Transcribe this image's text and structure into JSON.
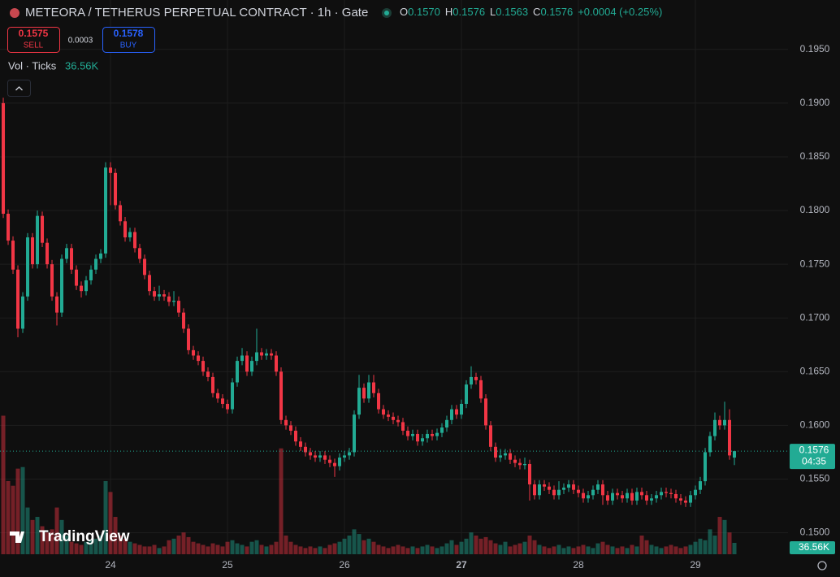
{
  "chart_data": {
    "type": "candlestick",
    "title": "METEORA / TETHERUS PERPETUAL CONTRACT · 1h · Gate",
    "ohlc_legend": [
      {
        "label": "O",
        "value": "0.1570"
      },
      {
        "label": "H",
        "value": "0.1576"
      },
      {
        "label": "L",
        "value": "0.1563"
      },
      {
        "label": "C",
        "value": "0.1576"
      }
    ],
    "change": "+0.0004 (+0.25%)",
    "sell": {
      "price": "0.1575",
      "label": "SELL"
    },
    "spread": "0.0003",
    "buy": {
      "price": "0.1578",
      "label": "BUY"
    },
    "volume_legend": {
      "label": "Vol · Ticks",
      "value": "36.56K"
    },
    "watermark": "TradingView",
    "up_color": "#22ab94",
    "down_color": "#f23645",
    "grid": true,
    "xlim": [
      -0.67,
      161
    ],
    "xticks": [
      {
        "value": 22,
        "label": "24"
      },
      {
        "value": 46,
        "label": "25"
      },
      {
        "value": 70,
        "label": "26"
      },
      {
        "value": 94,
        "label": "27",
        "bold": true
      },
      {
        "value": 118,
        "label": "28"
      },
      {
        "value": 142,
        "label": "29"
      }
    ],
    "ylim": [
      0.148,
      0.1996
    ],
    "yticks": [
      {
        "value": 0.15,
        "label": "0.1500"
      },
      {
        "value": 0.155,
        "label": "0.1550"
      },
      {
        "value": 0.16,
        "label": "0.1600"
      },
      {
        "value": 0.165,
        "label": "0.1650"
      },
      {
        "value": 0.17,
        "label": "0.1700"
      },
      {
        "value": 0.175,
        "label": "0.1750"
      },
      {
        "value": 0.18,
        "label": "0.1800"
      },
      {
        "value": 0.185,
        "label": "0.1850"
      },
      {
        "value": 0.19,
        "label": "0.1900"
      },
      {
        "value": 0.195,
        "label": "0.1950"
      }
    ],
    "last_price": {
      "value": 0.1576,
      "label": "0.1576"
    },
    "countdown": "04:35",
    "volume_lim": [
      0,
      1780000
    ],
    "last_volume": {
      "value": 36560,
      "label": "36.56K"
    },
    "open": [
      0.19,
      0.1797,
      0.1772,
      0.1745,
      0.169,
      0.172,
      0.1775,
      0.175,
      0.1795,
      0.177,
      0.175,
      0.172,
      0.1705,
      0.1755,
      0.1765,
      0.1745,
      0.173,
      0.1725,
      0.1735,
      0.1745,
      0.1755,
      0.176,
      0.184,
      0.1835,
      0.1805,
      0.179,
      0.1775,
      0.178,
      0.1765,
      0.1755,
      0.174,
      0.1725,
      0.172,
      0.1722,
      0.172,
      0.1715,
      0.1716,
      0.1705,
      0.169,
      0.167,
      0.1665,
      0.166,
      0.165,
      0.1645,
      0.163,
      0.1625,
      0.162,
      0.1615,
      0.164,
      0.166,
      0.1665,
      0.165,
      0.166,
      0.1668,
      0.1665,
      0.1667,
      0.1665,
      0.165,
      0.1605,
      0.16,
      0.1595,
      0.1585,
      0.158,
      0.1575,
      0.1572,
      0.157,
      0.1572,
      0.1568,
      0.1565,
      0.1562,
      0.157,
      0.1572,
      0.1575,
      0.161,
      0.1635,
      0.1625,
      0.164,
      0.163,
      0.1615,
      0.161,
      0.1608,
      0.1605,
      0.1603,
      0.1595,
      0.159,
      0.1592,
      0.1585,
      0.1588,
      0.1592,
      0.159,
      0.1593,
      0.1598,
      0.1605,
      0.1615,
      0.161,
      0.162,
      0.1638,
      0.1645,
      0.1642,
      0.1625,
      0.16,
      0.158,
      0.157,
      0.1572,
      0.1574,
      0.1568,
      0.1565,
      0.1563,
      0.1564,
      0.1545,
      0.1535,
      0.1545,
      0.1543,
      0.154,
      0.1535,
      0.154,
      0.1542,
      0.1545,
      0.154,
      0.1537,
      0.1532,
      0.1535,
      0.154,
      0.1545,
      0.1535,
      0.153,
      0.1537,
      0.1535,
      0.1532,
      0.1537,
      0.153,
      0.1538,
      0.1535,
      0.153,
      0.1532,
      0.1535,
      0.1538,
      0.1537,
      0.1536,
      0.1532,
      0.153,
      0.1528,
      0.1535,
      0.154,
      0.1548,
      0.1575,
      0.159,
      0.1605,
      0.16,
      0.1605,
      0.157
    ],
    "high": [
      0.1905,
      0.1801,
      0.1776,
      0.1749,
      0.1724,
      0.1779,
      0.1779,
      0.18,
      0.1799,
      0.1774,
      0.1754,
      0.1724,
      0.1759,
      0.1769,
      0.1769,
      0.1749,
      0.1734,
      0.1739,
      0.1749,
      0.1759,
      0.1764,
      0.1845,
      0.1845,
      0.1839,
      0.1809,
      0.1794,
      0.1784,
      0.1784,
      0.1769,
      0.1759,
      0.1744,
      0.1729,
      0.173,
      0.1726,
      0.1724,
      0.1725,
      0.172,
      0.1709,
      0.1694,
      0.1674,
      0.1669,
      0.1664,
      0.1654,
      0.1649,
      0.1634,
      0.1629,
      0.1624,
      0.1644,
      0.1664,
      0.1672,
      0.1669,
      0.1664,
      0.169,
      0.1672,
      0.1671,
      0.1671,
      0.1669,
      0.1654,
      0.1609,
      0.1604,
      0.1599,
      0.1589,
      0.1584,
      0.1579,
      0.1576,
      0.1576,
      0.1576,
      0.1572,
      0.1569,
      0.1574,
      0.1576,
      0.1579,
      0.1614,
      0.1647,
      0.1639,
      0.1647,
      0.1647,
      0.1634,
      0.1619,
      0.1614,
      0.1612,
      0.1609,
      0.1607,
      0.1599,
      0.1596,
      0.1596,
      0.1592,
      0.1596,
      0.1596,
      0.1597,
      0.1602,
      0.1609,
      0.1619,
      0.1619,
      0.1624,
      0.1642,
      0.1655,
      0.1649,
      0.1646,
      0.1629,
      0.1604,
      0.1584,
      0.1578,
      0.1578,
      0.1578,
      0.1572,
      0.1569,
      0.157,
      0.1568,
      0.1549,
      0.1549,
      0.1549,
      0.1547,
      0.1544,
      0.1548,
      0.1546,
      0.1549,
      0.1549,
      0.1544,
      0.1541,
      0.1539,
      0.1544,
      0.1549,
      0.1549,
      0.1539,
      0.1541,
      0.1541,
      0.1539,
      0.1541,
      0.1541,
      0.1542,
      0.1542,
      0.1539,
      0.1536,
      0.1539,
      0.1542,
      0.1542,
      0.1541,
      0.154,
      0.1536,
      0.1534,
      0.1539,
      0.1544,
      0.1552,
      0.1579,
      0.1594,
      0.1612,
      0.1609,
      0.1622,
      0.1615,
      0.1576
    ],
    "low": [
      0.1793,
      0.1768,
      0.1741,
      0.1682,
      0.1686,
      0.1716,
      0.1746,
      0.1746,
      0.1766,
      0.1746,
      0.1716,
      0.1693,
      0.1701,
      0.1751,
      0.1741,
      0.1726,
      0.1719,
      0.1721,
      0.1731,
      0.1741,
      0.1751,
      0.1756,
      0.1805,
      0.1801,
      0.1786,
      0.1771,
      0.1771,
      0.1761,
      0.1751,
      0.1736,
      0.1721,
      0.1716,
      0.1716,
      0.1716,
      0.1711,
      0.1711,
      0.1701,
      0.1686,
      0.1666,
      0.1661,
      0.1656,
      0.1646,
      0.1641,
      0.1626,
      0.1621,
      0.1616,
      0.1611,
      0.1611,
      0.1636,
      0.1656,
      0.1646,
      0.1646,
      0.1656,
      0.1661,
      0.1661,
      0.1661,
      0.1646,
      0.1601,
      0.1596,
      0.1591,
      0.1581,
      0.1576,
      0.1571,
      0.1568,
      0.1566,
      0.1566,
      0.1564,
      0.1561,
      0.1552,
      0.1558,
      0.1566,
      0.1568,
      0.1571,
      0.1606,
      0.1621,
      0.1621,
      0.1626,
      0.1611,
      0.1606,
      0.1604,
      0.1601,
      0.1599,
      0.1591,
      0.1586,
      0.1586,
      0.1581,
      0.1581,
      0.1584,
      0.1586,
      0.1586,
      0.1589,
      0.1594,
      0.1601,
      0.1606,
      0.1606,
      0.1616,
      0.1634,
      0.1638,
      0.1621,
      0.1596,
      0.1576,
      0.1566,
      0.1566,
      0.1568,
      0.1564,
      0.1561,
      0.1559,
      0.1559,
      0.153,
      0.1531,
      0.1531,
      0.1539,
      0.1536,
      0.1531,
      0.1531,
      0.1536,
      0.1538,
      0.1536,
      0.1533,
      0.1528,
      0.1528,
      0.1531,
      0.1536,
      0.1526,
      0.1526,
      0.1526,
      0.1531,
      0.1528,
      0.1528,
      0.1526,
      0.1526,
      0.1531,
      0.1526,
      0.1526,
      0.1528,
      0.1531,
      0.1533,
      0.1532,
      0.1528,
      0.1526,
      0.1524,
      0.1524,
      0.1531,
      0.1536,
      0.1544,
      0.1571,
      0.1586,
      0.1596,
      0.1596,
      0.1568,
      0.1563
    ],
    "close": [
      0.1797,
      0.1772,
      0.1745,
      0.169,
      0.172,
      0.1775,
      0.175,
      0.1795,
      0.177,
      0.175,
      0.172,
      0.1705,
      0.1755,
      0.1765,
      0.1745,
      0.173,
      0.1725,
      0.1735,
      0.1745,
      0.1755,
      0.176,
      0.184,
      0.1835,
      0.1805,
      0.179,
      0.1775,
      0.178,
      0.1765,
      0.1755,
      0.174,
      0.1725,
      0.172,
      0.1722,
      0.172,
      0.1715,
      0.1716,
      0.1705,
      0.169,
      0.167,
      0.1665,
      0.166,
      0.165,
      0.1645,
      0.163,
      0.1625,
      0.162,
      0.1615,
      0.164,
      0.166,
      0.1665,
      0.165,
      0.166,
      0.1668,
      0.1665,
      0.1667,
      0.1665,
      0.165,
      0.1605,
      0.16,
      0.1595,
      0.1585,
      0.158,
      0.1575,
      0.1572,
      0.157,
      0.1572,
      0.1568,
      0.1565,
      0.1562,
      0.157,
      0.1572,
      0.1575,
      0.161,
      0.1635,
      0.1625,
      0.164,
      0.163,
      0.1615,
      0.161,
      0.1608,
      0.1605,
      0.1603,
      0.1595,
      0.159,
      0.1592,
      0.1585,
      0.1588,
      0.1592,
      0.159,
      0.1593,
      0.1598,
      0.1605,
      0.1615,
      0.161,
      0.162,
      0.1638,
      0.1645,
      0.1642,
      0.1625,
      0.16,
      0.158,
      0.157,
      0.1572,
      0.1574,
      0.1568,
      0.1565,
      0.1563,
      0.1564,
      0.1545,
      0.1535,
      0.1545,
      0.1543,
      0.154,
      0.1535,
      0.154,
      0.1542,
      0.1545,
      0.154,
      0.1537,
      0.1532,
      0.1535,
      0.154,
      0.1545,
      0.1535,
      0.153,
      0.1537,
      0.1535,
      0.1532,
      0.1537,
      0.153,
      0.1538,
      0.1535,
      0.153,
      0.1532,
      0.1535,
      0.1538,
      0.1537,
      0.1536,
      0.1532,
      0.153,
      0.1528,
      0.1535,
      0.154,
      0.1548,
      0.1575,
      0.159,
      0.1605,
      0.16,
      0.1605,
      0.1572,
      0.1576
    ],
    "volume": [
      445000,
      235000,
      220000,
      275000,
      280000,
      150000,
      110000,
      120000,
      90000,
      70000,
      80000,
      150000,
      110000,
      60000,
      40000,
      35000,
      30000,
      40000,
      45000,
      50000,
      60000,
      235000,
      200000,
      120000,
      60000,
      50000,
      40000,
      35000,
      30000,
      25000,
      25000,
      30000,
      20000,
      25000,
      45000,
      50000,
      60000,
      70000,
      55000,
      40000,
      35000,
      30000,
      25000,
      35000,
      30000,
      25000,
      40000,
      45000,
      35000,
      30000,
      25000,
      40000,
      45000,
      30000,
      25000,
      30000,
      40000,
      340000,
      60000,
      40000,
      30000,
      25000,
      20000,
      25000,
      20000,
      25000,
      20000,
      30000,
      35000,
      40000,
      50000,
      60000,
      80000,
      65000,
      45000,
      50000,
      40000,
      30000,
      25000,
      20000,
      25000,
      30000,
      25000,
      20000,
      25000,
      20000,
      25000,
      30000,
      25000,
      20000,
      25000,
      35000,
      45000,
      30000,
      40000,
      50000,
      70000,
      60000,
      50000,
      55000,
      45000,
      35000,
      30000,
      40000,
      25000,
      30000,
      35000,
      40000,
      60000,
      45000,
      30000,
      25000,
      20000,
      25000,
      30000,
      20000,
      25000,
      20000,
      25000,
      30000,
      25000,
      20000,
      35000,
      40000,
      30000,
      25000,
      20000,
      25000,
      20000,
      30000,
      25000,
      60000,
      45000,
      30000,
      25000,
      20000,
      25000,
      30000,
      25000,
      20000,
      25000,
      30000,
      40000,
      50000,
      45000,
      80000,
      60000,
      120000,
      110000,
      70000,
      36560
    ]
  }
}
